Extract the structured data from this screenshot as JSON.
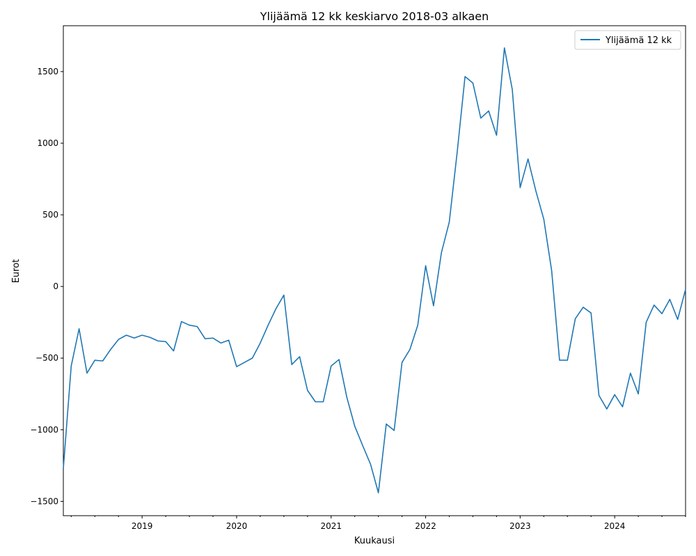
{
  "chart_data": {
    "type": "line",
    "title": "Ylijäämä 12 kk keskiarvo 2018-03 alkaen",
    "xlabel": "Kuukausi",
    "ylabel": "Eurot",
    "legend": "top-right",
    "grid": false,
    "xlim": [
      "2018-03",
      "2024-10"
    ],
    "ylim": [
      -1600,
      1820
    ],
    "x_ticks": [
      "2019",
      "2020",
      "2021",
      "2022",
      "2023",
      "2024"
    ],
    "y_ticks": [
      -1500,
      -1000,
      -500,
      0,
      500,
      1000,
      1500
    ],
    "color": "#1f77b4",
    "series": [
      {
        "name": "Ylijäämä 12 kk",
        "x": [
          "2018-03",
          "2018-04",
          "2018-05",
          "2018-06",
          "2018-07",
          "2018-08",
          "2018-09",
          "2018-10",
          "2018-11",
          "2018-12",
          "2019-01",
          "2019-02",
          "2019-03",
          "2019-04",
          "2019-05",
          "2019-06",
          "2019-07",
          "2019-08",
          "2019-09",
          "2019-10",
          "2019-11",
          "2019-12",
          "2020-01",
          "2020-02",
          "2020-03",
          "2020-04",
          "2020-05",
          "2020-06",
          "2020-07",
          "2020-08",
          "2020-09",
          "2020-10",
          "2020-11",
          "2020-12",
          "2021-01",
          "2021-02",
          "2021-03",
          "2021-04",
          "2021-05",
          "2021-06",
          "2021-07",
          "2021-08",
          "2021-09",
          "2021-10",
          "2021-11",
          "2021-12",
          "2022-01",
          "2022-02",
          "2022-03",
          "2022-04",
          "2022-05",
          "2022-06",
          "2022-07",
          "2022-08",
          "2022-09",
          "2022-10",
          "2022-11",
          "2022-12",
          "2023-01",
          "2023-02",
          "2023-03",
          "2023-04",
          "2023-05",
          "2023-06",
          "2023-07",
          "2023-08",
          "2023-09",
          "2023-10",
          "2023-11",
          "2023-12",
          "2024-01",
          "2024-02",
          "2024-03",
          "2024-04",
          "2024-05",
          "2024-06",
          "2024-07",
          "2024-08",
          "2024-09",
          "2024-10"
        ],
        "values": [
          -1270,
          -555,
          -295,
          -605,
          -515,
          -520,
          -440,
          -370,
          -340,
          -360,
          -340,
          -355,
          -380,
          -385,
          -450,
          -245,
          -270,
          -280,
          -365,
          -360,
          -395,
          -375,
          -560,
          -530,
          -500,
          -395,
          -270,
          -155,
          -60,
          -545,
          -490,
          -725,
          -805,
          -805,
          -555,
          -510,
          -775,
          -975,
          -1110,
          -1240,
          -1440,
          -960,
          -1005,
          -530,
          -440,
          -270,
          145,
          -135,
          235,
          450,
          935,
          1465,
          1420,
          1175,
          1225,
          1055,
          1665,
          1375,
          690,
          890,
          665,
          470,
          110,
          -515,
          -515,
          -225,
          -145,
          -185,
          -760,
          -855,
          -755,
          -840,
          -605,
          -750,
          -250,
          -130,
          -190,
          -90,
          -230,
          -20
        ]
      }
    ]
  }
}
